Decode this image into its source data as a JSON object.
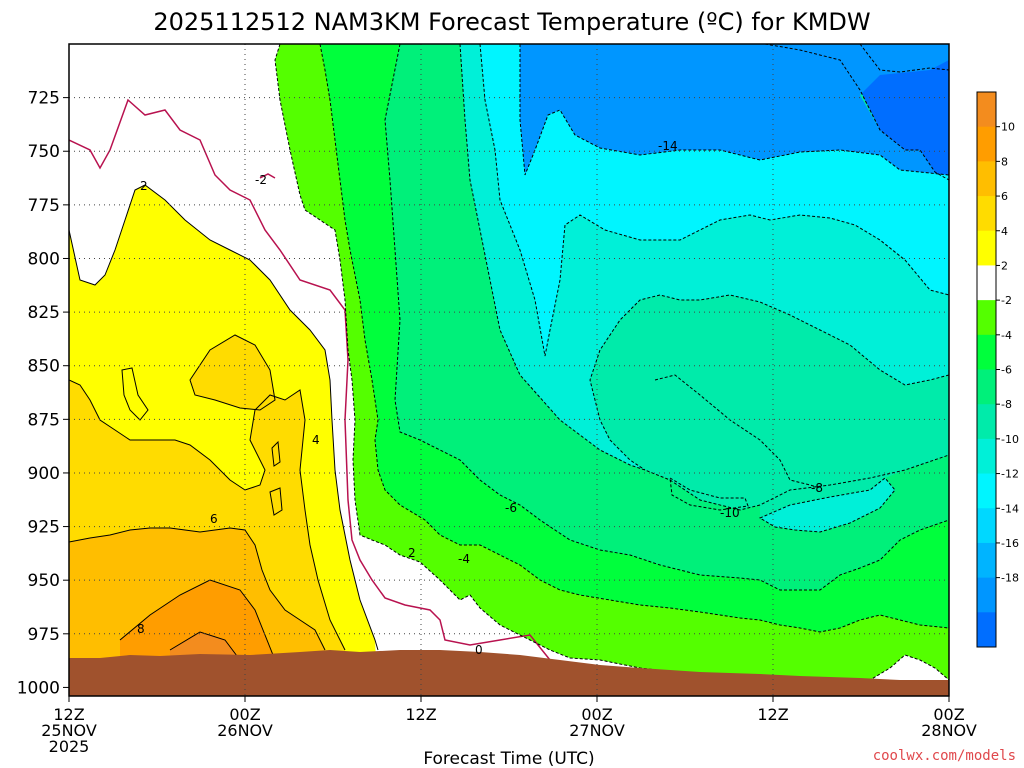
{
  "chart_data": {
    "type": "heatmap",
    "title": "2025112512 NAM3KM Forecast Temperature (ºC) for KMDW",
    "xlabel": "Forecast Time (UTC)",
    "ylabel": "",
    "x_ticks": [
      {
        "hours": 0,
        "line1": "12Z",
        "line2": "25NOV",
        "line3": "2025"
      },
      {
        "hours": 12,
        "line1": "00Z",
        "line2": "26NOV",
        "line3": ""
      },
      {
        "hours": 24,
        "line1": "12Z",
        "line2": "",
        "line3": ""
      },
      {
        "hours": 36,
        "line1": "00Z",
        "line2": "27NOV",
        "line3": ""
      },
      {
        "hours": 48,
        "line1": "12Z",
        "line2": "",
        "line3": ""
      },
      {
        "hours": 60,
        "line1": "00Z",
        "line2": "28NOV",
        "line3": ""
      }
    ],
    "xlim_hours": [
      0,
      60
    ],
    "y_ticks": [
      725,
      750,
      775,
      800,
      825,
      850,
      875,
      900,
      925,
      950,
      975,
      1000
    ],
    "ylim_hpa": [
      700,
      1004
    ],
    "colorbar": {
      "ticks": [
        "10",
        "8",
        "6",
        "4",
        "2",
        "-2",
        "-4",
        "-6",
        "-8",
        "-10",
        "-12",
        "-14",
        "-16",
        "-18"
      ],
      "colors": [
        "#f38c1e",
        "#ff9d00",
        "#ffbe00",
        "#ffdc00",
        "#ffff00",
        "#ffffff",
        "#54ff00",
        "#00ff3c",
        "#00f07a",
        "#00ebaa",
        "#00f0d8",
        "#00f5ff",
        "#00d8ff",
        "#00b4ff",
        "#0096ff",
        "#006eff"
      ]
    },
    "contour_labels": [
      "-14",
      "-2",
      "2",
      "4",
      "6",
      "8",
      "-4",
      "-6",
      "-10",
      "-8",
      "0",
      "2"
    ],
    "terrain_color": "#a0522d",
    "grid": true,
    "legend": "right"
  },
  "credit": "coolwx.com/models"
}
